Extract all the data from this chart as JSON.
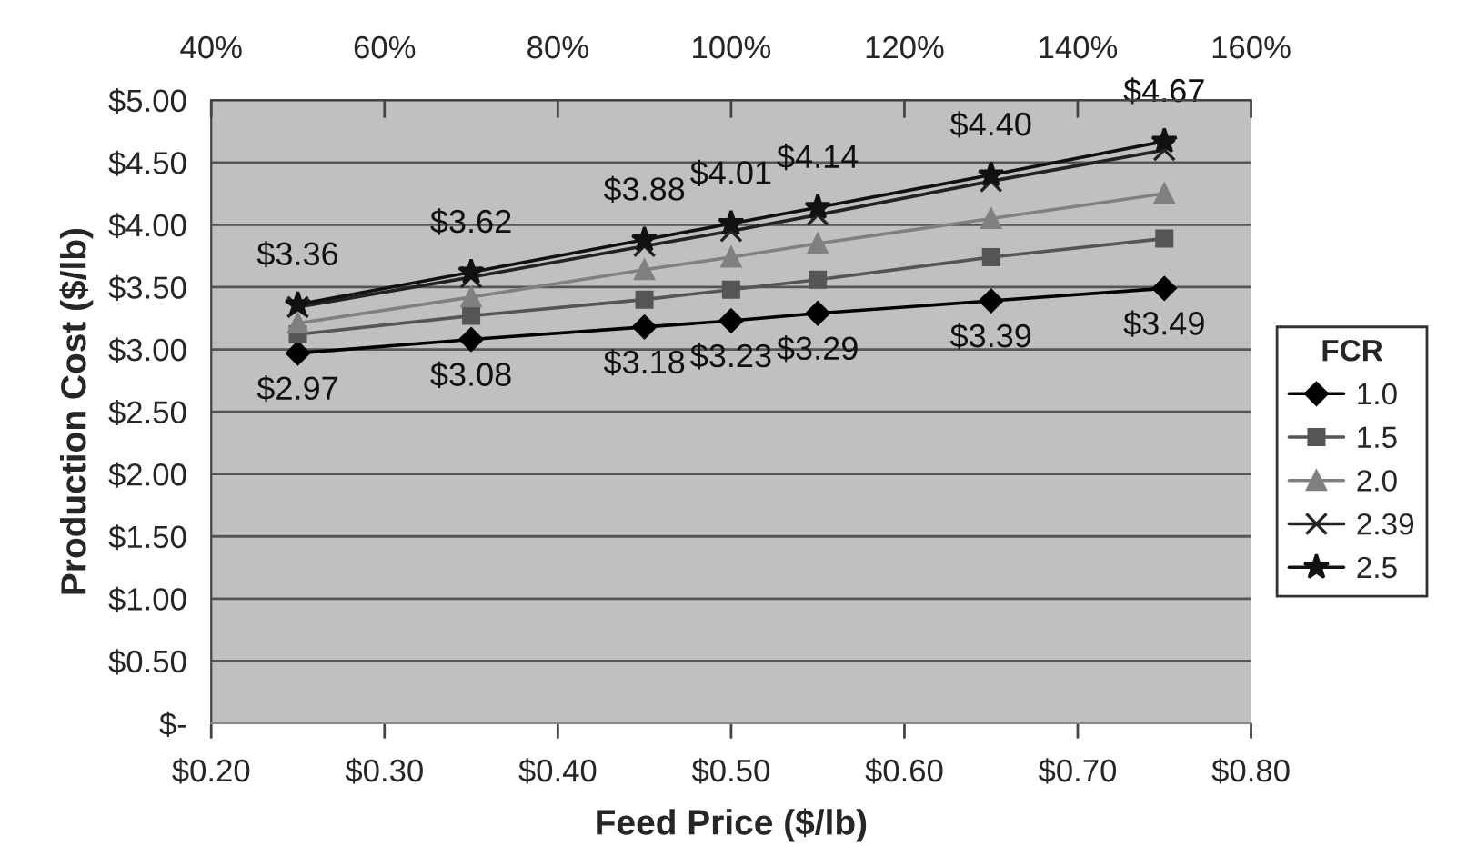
{
  "chart_data": {
    "type": "line",
    "xlabel": "Feed Price ($/lb)",
    "ylabel": "Production Cost ($/lb)",
    "legend_title": "FCR",
    "x": [
      0.25,
      0.35,
      0.45,
      0.5,
      0.55,
      0.65,
      0.75
    ],
    "xlim": [
      0.2,
      0.8
    ],
    "xticks": [
      {
        "value": 0.2,
        "label": "$0.20"
      },
      {
        "value": 0.3,
        "label": "$0.30"
      },
      {
        "value": 0.4,
        "label": "$0.40"
      },
      {
        "value": 0.5,
        "label": "$0.50"
      },
      {
        "value": 0.6,
        "label": "$0.60"
      },
      {
        "value": 0.7,
        "label": "$0.70"
      },
      {
        "value": 0.8,
        "label": "$0.80"
      }
    ],
    "x2lim": [
      40,
      160
    ],
    "x2ticks": [
      {
        "value": 40,
        "label": "40%"
      },
      {
        "value": 60,
        "label": "60%"
      },
      {
        "value": 80,
        "label": "80%"
      },
      {
        "value": 100,
        "label": "100%"
      },
      {
        "value": 120,
        "label": "120%"
      },
      {
        "value": 140,
        "label": "140%"
      },
      {
        "value": 160,
        "label": "160%"
      }
    ],
    "ylim": [
      0,
      5
    ],
    "yticks": [
      {
        "value": 0,
        "label": "$-"
      },
      {
        "value": 0.5,
        "label": "$0.50"
      },
      {
        "value": 1,
        "label": "$1.00"
      },
      {
        "value": 1.5,
        "label": "$1.50"
      },
      {
        "value": 2,
        "label": "$2.00"
      },
      {
        "value": 2.5,
        "label": "$2.50"
      },
      {
        "value": 3,
        "label": "$3.00"
      },
      {
        "value": 3.5,
        "label": "$3.50"
      },
      {
        "value": 4,
        "label": "$4.00"
      },
      {
        "value": 4.5,
        "label": "$4.50"
      },
      {
        "value": 5,
        "label": "$5.00"
      }
    ],
    "grid": "y",
    "legend": "right",
    "series": [
      {
        "name": "1.0",
        "color": "#000000",
        "marker": "diamond",
        "values": [
          2.97,
          3.08,
          3.18,
          3.23,
          3.29,
          3.39,
          3.49
        ],
        "value_labels": [
          "$2.97",
          "$3.08",
          "$3.18",
          "$3.23",
          "$3.29",
          "$3.39",
          "$3.49"
        ]
      },
      {
        "name": "1.5",
        "color": "#555555",
        "marker": "square",
        "values": [
          3.12,
          3.27,
          3.4,
          3.48,
          3.56,
          3.74,
          3.89
        ]
      },
      {
        "name": "2.0",
        "color": "#808080",
        "marker": "triangle",
        "values": [
          3.21,
          3.42,
          3.64,
          3.74,
          3.85,
          4.05,
          4.25
        ]
      },
      {
        "name": "2.39",
        "color": "#222222",
        "marker": "cross",
        "values": [
          3.34,
          3.58,
          3.83,
          3.95,
          4.08,
          4.35,
          4.6
        ]
      },
      {
        "name": "2.5",
        "color": "#111111",
        "marker": "star",
        "values": [
          3.36,
          3.62,
          3.88,
          4.01,
          4.14,
          4.4,
          4.67
        ],
        "value_labels": [
          "$3.36",
          "$3.62",
          "$3.88",
          "$4.01",
          "$4.14",
          "$4.40",
          "$4.67"
        ]
      }
    ]
  }
}
